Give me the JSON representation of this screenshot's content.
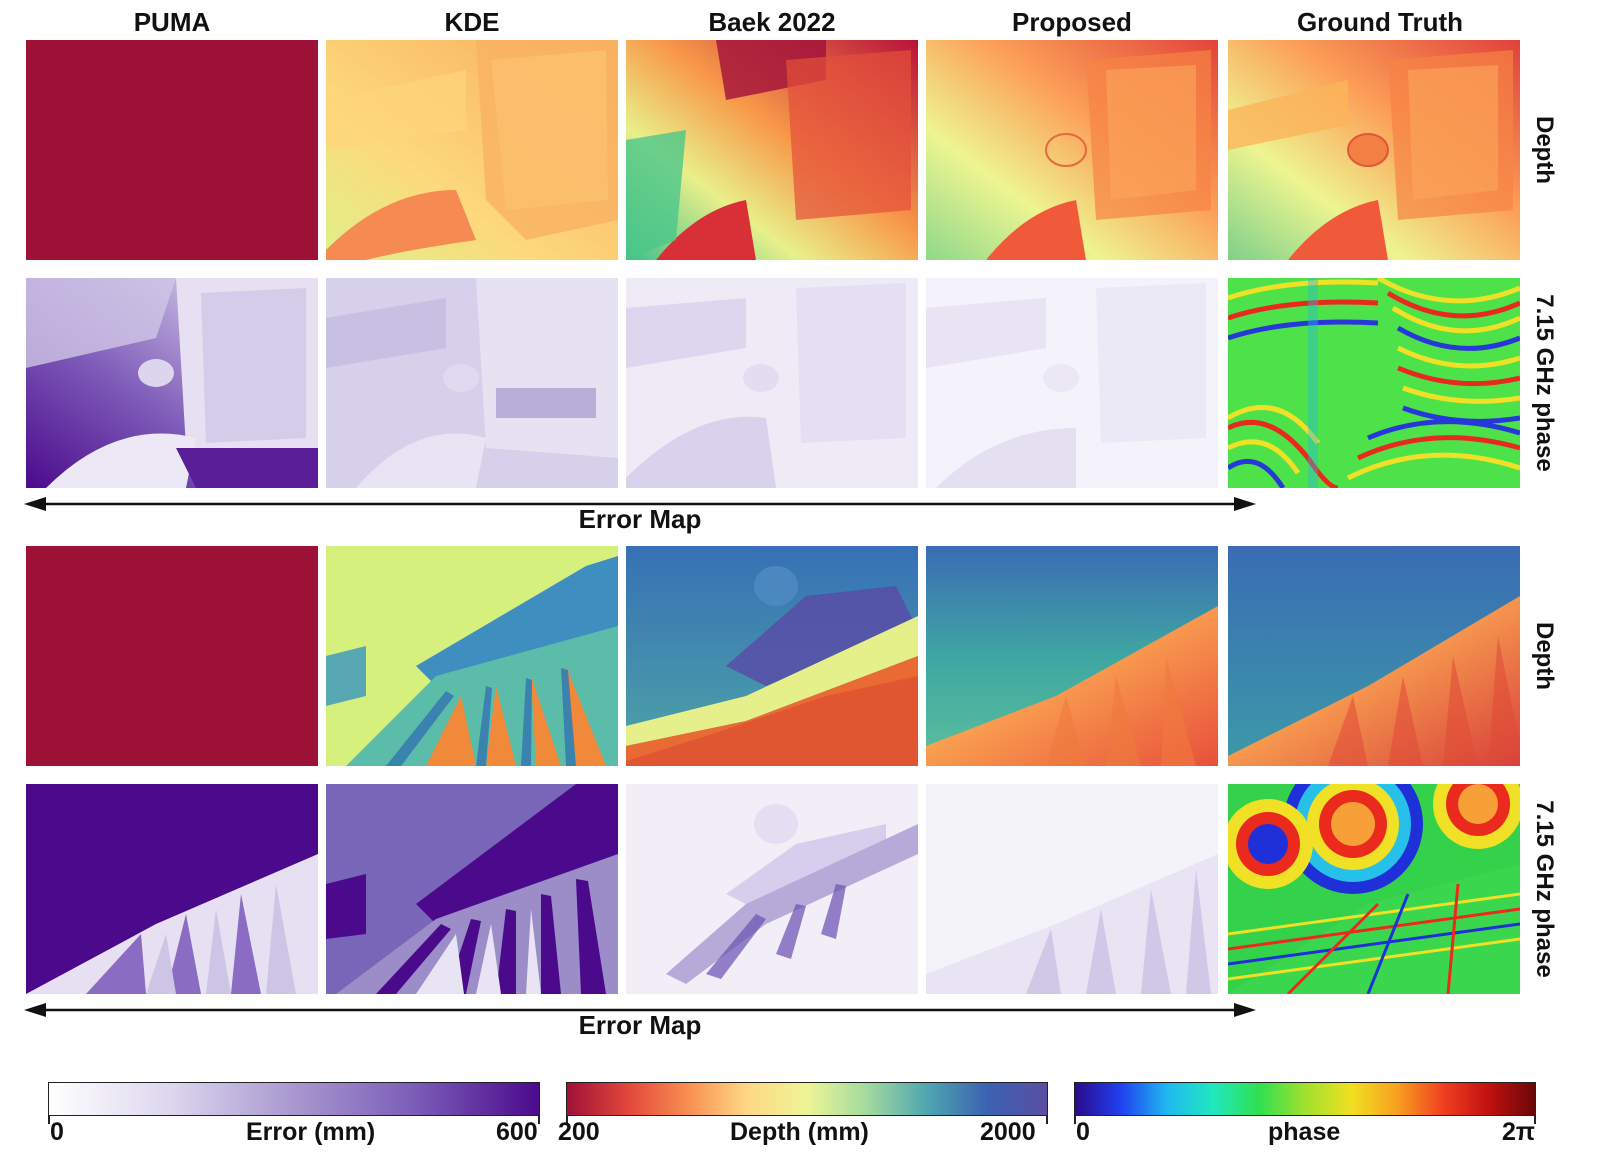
{
  "columns": [
    "PUMA",
    "KDE",
    "Baek 2022",
    "Proposed",
    "Ground Truth"
  ],
  "row_labels": {
    "depth": "Depth",
    "phase": "7.15 GHz phase"
  },
  "error_map_label": "Error Map",
  "colorbars": {
    "error": {
      "min_label": "0",
      "title": "Error (mm)",
      "max_label": "600"
    },
    "depth": {
      "min_label": "200",
      "title": "Depth (mm)",
      "max_label": "2000"
    },
    "phase": {
      "min_label": "0",
      "title": "phase",
      "max_label": "2π"
    }
  },
  "colors": {
    "puma_depth": "#9e1238",
    "error_max": "#4b0a8c",
    "error_min": "#f6f4fa",
    "arrow": "#111111"
  }
}
